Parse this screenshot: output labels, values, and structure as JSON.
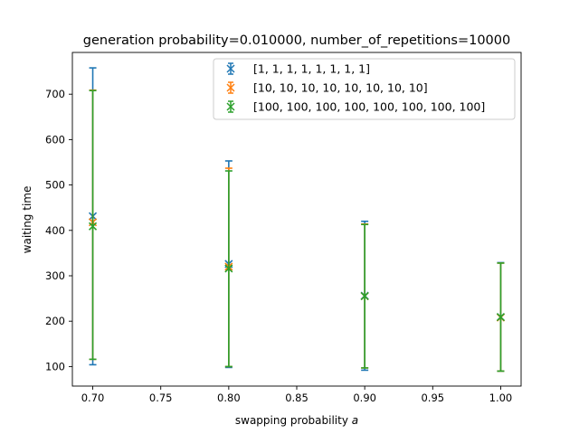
{
  "chart_data": {
    "type": "scatter",
    "title": "generation probability=0.010000, number_of_repetitions=10000",
    "xlabel": "swapping probability",
    "xlabel_var": "a",
    "ylabel": "waiting time",
    "xlim": [
      0.685,
      1.015
    ],
    "ylim": [
      57,
      792
    ],
    "xticks": [
      0.7,
      0.75,
      0.8,
      0.85,
      0.9,
      0.95,
      1.0
    ],
    "xtick_labels": [
      "0.70",
      "0.75",
      "0.80",
      "0.85",
      "0.90",
      "0.95",
      "1.00"
    ],
    "yticks": [
      100,
      200,
      300,
      400,
      500,
      600,
      700
    ],
    "ytick_labels": [
      "100",
      "200",
      "300",
      "400",
      "500",
      "600",
      "700"
    ],
    "grid": false,
    "legend_position": "top-right",
    "marker": "x with error bars",
    "series": [
      {
        "name": "[1, 1, 1, 1, 1, 1, 1, 1]",
        "color": "#1f77b4",
        "x": [
          0.7,
          0.8,
          0.9,
          1.0
        ],
        "y": [
          431,
          326,
          256,
          209
        ],
        "err_low": [
          104,
          98,
          92,
          90
        ],
        "err_high": [
          758,
          553,
          420,
          329
        ]
      },
      {
        "name": "[10, 10, 10, 10, 10, 10, 10, 10]",
        "color": "#ff7f0e",
        "x": [
          0.7,
          0.8,
          0.9,
          1.0
        ],
        "y": [
          418,
          320,
          255,
          208
        ],
        "err_low": [
          116,
          100,
          97,
          90
        ],
        "err_high": [
          709,
          537,
          414,
          328
        ]
      },
      {
        "name": "[100, 100, 100, 100, 100, 100, 100, 100]",
        "color": "#2ca02c",
        "x": [
          0.7,
          0.8,
          0.9,
          1.0
        ],
        "y": [
          409,
          316,
          255,
          209
        ],
        "err_low": [
          116,
          100,
          97,
          90
        ],
        "err_high": [
          708,
          531,
          413,
          328
        ]
      }
    ]
  }
}
